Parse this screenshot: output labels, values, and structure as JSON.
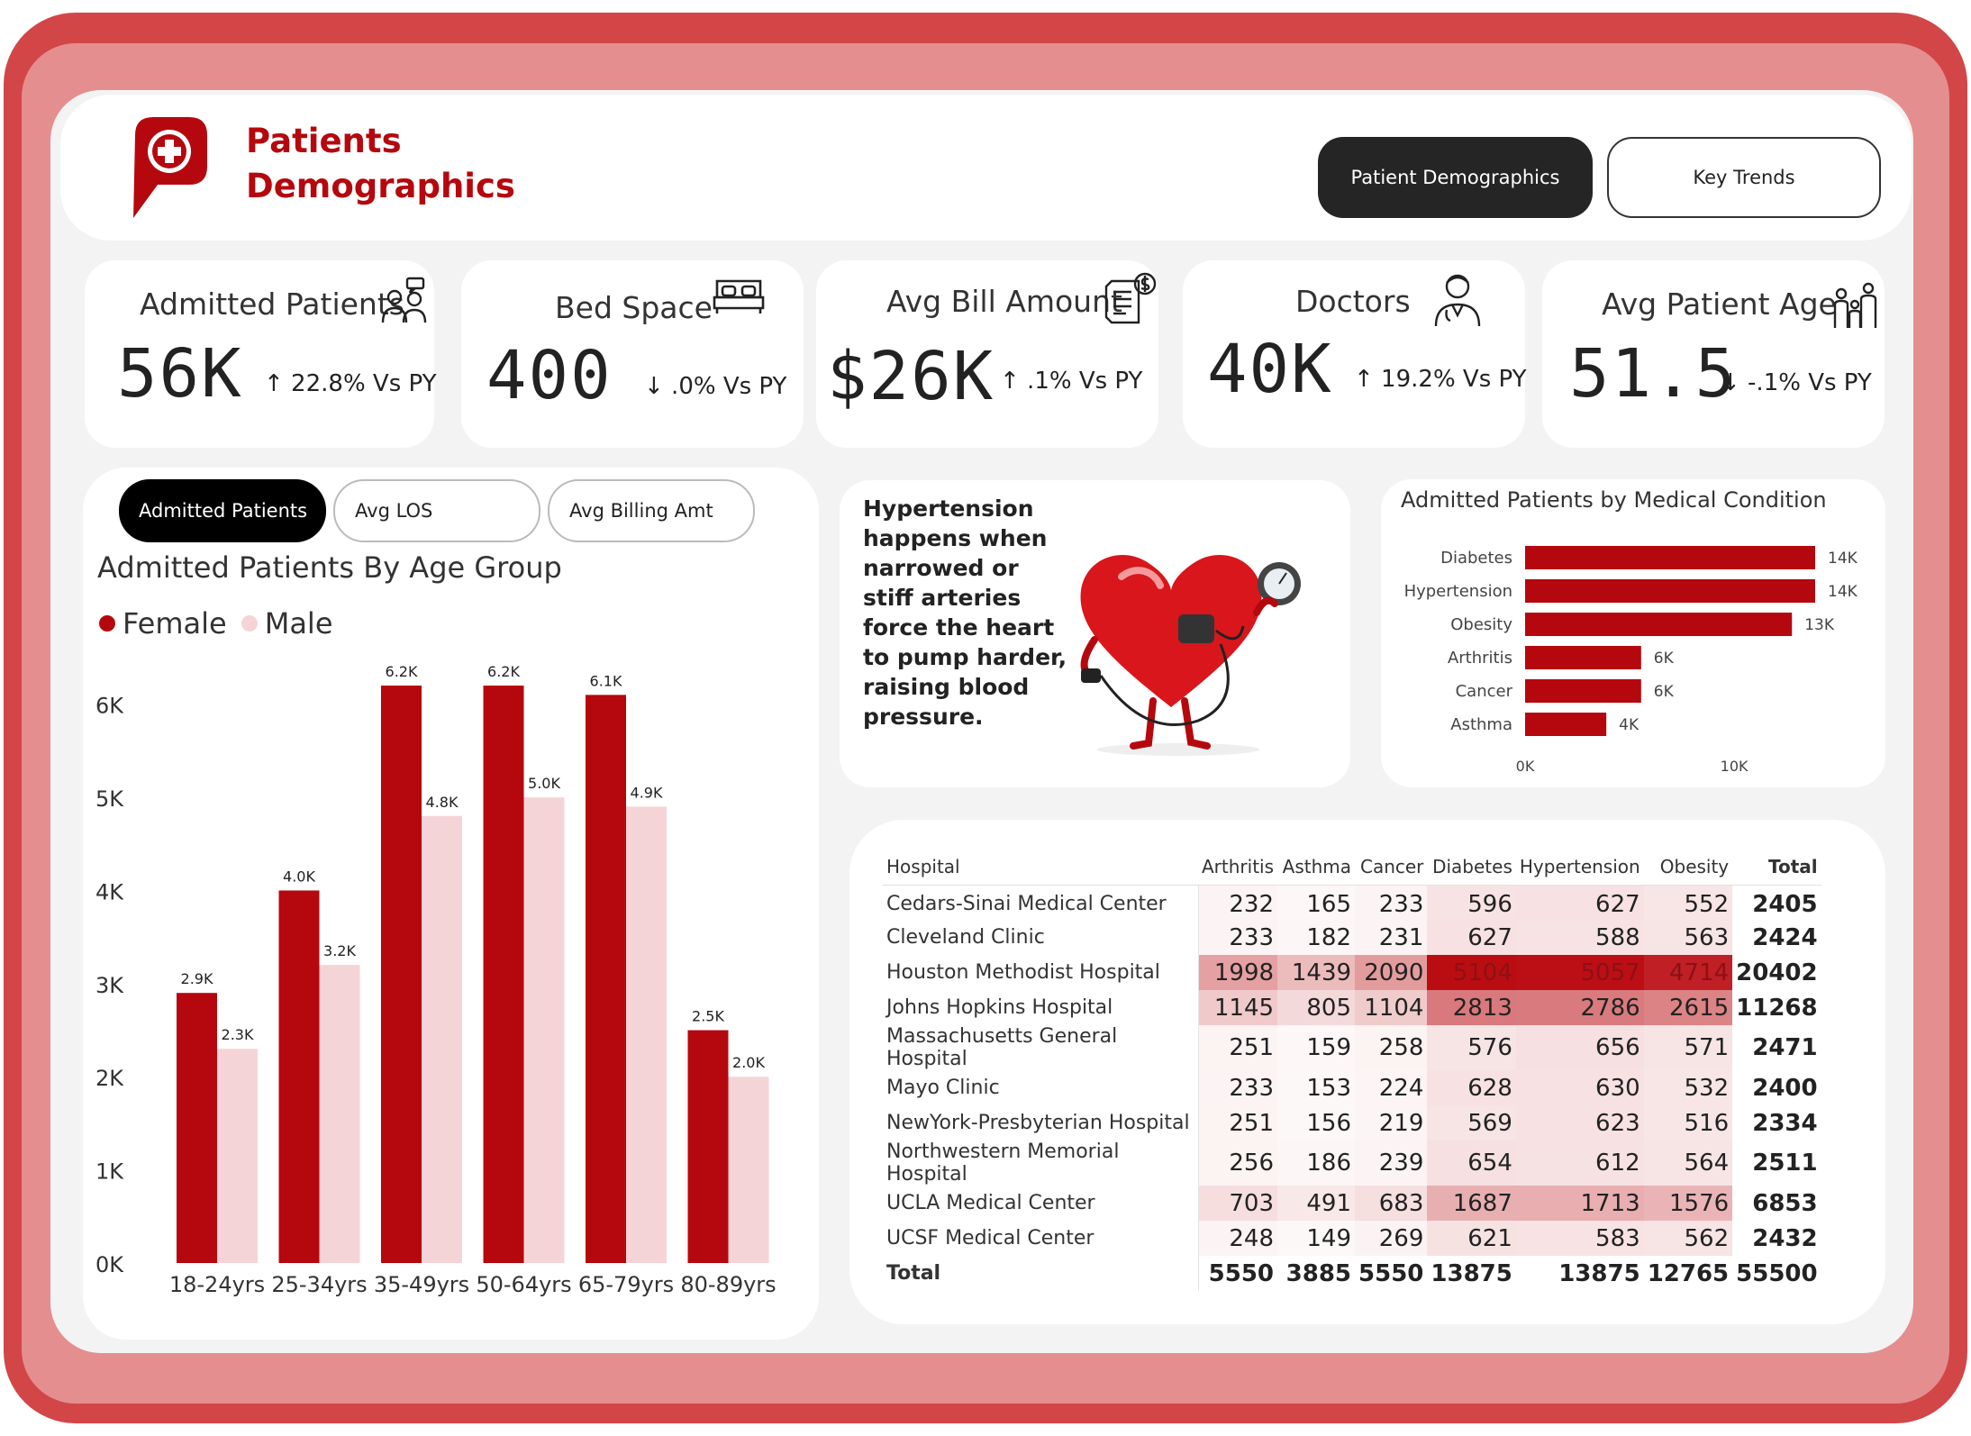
{
  "header": {
    "title_line1": "Patients",
    "title_line2": "Demographics",
    "nav_active": "Patient Demographics",
    "nav_other": "Key Trends"
  },
  "kpis": [
    {
      "label": "Admitted Patients",
      "value": "56K",
      "delta": "↑ 22.8% Vs PY",
      "icon": "patients-icon"
    },
    {
      "label": "Bed Space",
      "value": "400",
      "delta": "↓ .0% Vs PY",
      "icon": "bed-icon"
    },
    {
      "label": "Avg Bill Amount",
      "value": "$26K",
      "delta": "↑ .1% Vs PY",
      "icon": "bill-icon"
    },
    {
      "label": "Doctors",
      "value": "40K",
      "delta": "↑ 19.2% Vs PY",
      "icon": "doctor-icon"
    },
    {
      "label": "Avg Patient Age",
      "value": "51.5",
      "delta": "↓ -.1% Vs PY",
      "icon": "family-icon"
    }
  ],
  "tabs": [
    "Admitted Patients",
    "Avg LOS",
    "Avg Billing Amt"
  ],
  "age_chart": {
    "title": "Admitted Patients By Age Group",
    "legend_female": "Female",
    "legend_male": "Male",
    "y_ticks": [
      "0K",
      "1K",
      "2K",
      "3K",
      "4K",
      "5K",
      "6K"
    ]
  },
  "info": {
    "text": "Hypertension happens when narrowed or stiff arteries force the heart to pump harder, raising blood pressure."
  },
  "condition_chart": {
    "title": "Admitted Patients by Medical Condition",
    "x_ticks": [
      "0K",
      "10K"
    ]
  },
  "chart_data": [
    {
      "type": "bar",
      "title": "Admitted Patients By Age Group",
      "categories": [
        "18-24yrs",
        "25-34yrs",
        "35-49yrs",
        "50-64yrs",
        "65-79yrs",
        "80-89yrs"
      ],
      "series": [
        {
          "name": "Female",
          "values": [
            2.9,
            4.0,
            6.2,
            6.2,
            6.1,
            2.5
          ],
          "labels": [
            "2.9K",
            "4.0K",
            "6.2K",
            "6.2K",
            "6.1K",
            "2.5K"
          ],
          "color": "#b5080e"
        },
        {
          "name": "Male",
          "values": [
            2.3,
            3.2,
            4.8,
            5.0,
            4.9,
            2.0
          ],
          "labels": [
            "2.3K",
            "3.2K",
            "4.8K",
            "5.0K",
            "4.9K",
            "2.0K"
          ],
          "color": "#f5d4d7"
        }
      ],
      "ylim": [
        0,
        6.5
      ],
      "yunit": "K",
      "grid": false,
      "legend": "top-left"
    },
    {
      "type": "bar",
      "orientation": "horizontal",
      "title": "Admitted Patients by Medical Condition",
      "categories": [
        "Diabetes",
        "Hypertension",
        "Obesity",
        "Arthritis",
        "Cancer",
        "Asthma"
      ],
      "values": [
        13875,
        13875,
        12765,
        5550,
        5550,
        3885
      ],
      "labels": [
        "14K",
        "14K",
        "13K",
        "6K",
        "6K",
        "4K"
      ],
      "xlim": [
        0,
        14500
      ],
      "color": "#b5080e"
    },
    {
      "type": "table",
      "columns": [
        "Hospital",
        "Arthritis",
        "Asthma",
        "Cancer",
        "Diabetes",
        "Hypertension",
        "Obesity",
        "Total"
      ],
      "rows": [
        [
          "Cedars-Sinai Medical Center",
          232,
          165,
          233,
          596,
          627,
          552,
          2405
        ],
        [
          "Cleveland Clinic",
          233,
          182,
          231,
          627,
          588,
          563,
          2424
        ],
        [
          "Houston Methodist Hospital",
          1998,
          1439,
          2090,
          5104,
          5057,
          4714,
          20402
        ],
        [
          "Johns Hopkins Hospital",
          1145,
          805,
          1104,
          2813,
          2786,
          2615,
          11268
        ],
        [
          "Massachusetts General Hospital",
          251,
          159,
          258,
          576,
          656,
          571,
          2471
        ],
        [
          "Mayo Clinic",
          233,
          153,
          224,
          628,
          630,
          532,
          2400
        ],
        [
          "NewYork-Presbyterian Hospital",
          251,
          156,
          219,
          569,
          623,
          516,
          2334
        ],
        [
          "Northwestern Memorial Hospital",
          256,
          186,
          239,
          654,
          612,
          564,
          2511
        ],
        [
          "UCLA Medical Center",
          703,
          491,
          683,
          1687,
          1713,
          1576,
          6853
        ],
        [
          "UCSF Medical Center",
          248,
          149,
          269,
          621,
          583,
          562,
          2432
        ]
      ],
      "totals": [
        "Total",
        5550,
        3885,
        5550,
        13875,
        13875,
        12765,
        55500
      ]
    }
  ],
  "colors": {
    "brand": "#b5080e",
    "frame": "#d24648",
    "frame_inner": "#e58e8f",
    "male": "#f5d4d7"
  }
}
